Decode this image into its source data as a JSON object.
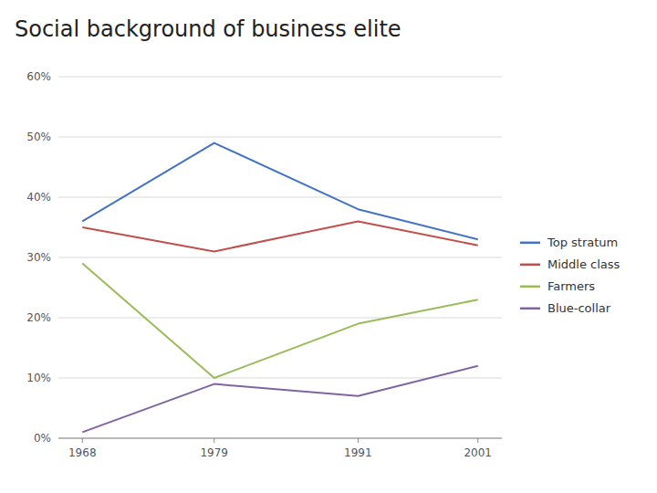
{
  "chart_data": {
    "type": "line",
    "title": "Social background of business elite",
    "x": [
      1968,
      1979,
      1991,
      2001
    ],
    "series": [
      {
        "name": "Top stratum",
        "values": [
          36,
          49,
          38,
          33
        ],
        "color": "#4472C4"
      },
      {
        "name": "Middle class",
        "values": [
          35,
          31,
          36,
          32
        ],
        "color": "#C0504D"
      },
      {
        "name": "Farmers",
        "values": [
          29,
          10,
          19,
          23
        ],
        "color": "#9BBB59"
      },
      {
        "name": "Blue-collar",
        "values": [
          1,
          9,
          7,
          12
        ],
        "color": "#8064A2"
      }
    ],
    "xlim": [
      1966,
      2003
    ],
    "xticks": [
      1968,
      1979,
      1991,
      2001
    ],
    "ylim": [
      0,
      60
    ],
    "yticks": [
      {
        "value": 0,
        "label": "0%"
      },
      {
        "value": 10,
        "label": "10%"
      },
      {
        "value": 20,
        "label": "20%"
      },
      {
        "value": 30,
        "label": "30%"
      },
      {
        "value": 40,
        "label": "40%"
      },
      {
        "value": 50,
        "label": "50%"
      },
      {
        "value": 60,
        "label": "60%"
      }
    ],
    "grid": true,
    "legend": "right"
  }
}
